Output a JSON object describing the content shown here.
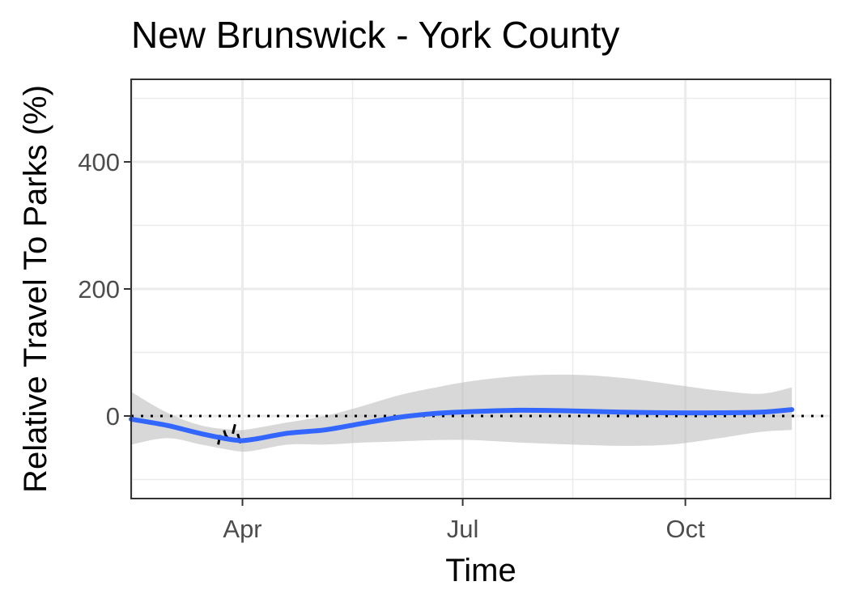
{
  "chart_data": {
    "type": "line",
    "title": "New Brunswick - York County",
    "xlabel": "Time",
    "ylabel": "Relative Travel To Parks (%)",
    "x_ticks": [
      {
        "label": "Apr",
        "date": "2020-04-01"
      },
      {
        "label": "Jul",
        "date": "2020-07-01"
      },
      {
        "label": "Oct",
        "date": "2020-10-01"
      }
    ],
    "y_ticks": [
      0,
      200,
      400
    ],
    "xlim": [
      "2020-02-15",
      "2020-11-30"
    ],
    "ylim": [
      -130,
      530
    ],
    "grid": true,
    "reference_line": {
      "y": 0,
      "style": "dotted"
    },
    "series": [
      {
        "kind": "smooth",
        "color": "#3366ff",
        "points": [
          {
            "x": "2020-02-15",
            "y": -5,
            "lo": -45,
            "hi": 38
          },
          {
            "x": "2020-03-01",
            "y": -15,
            "lo": -35,
            "hi": 5
          },
          {
            "x": "2020-03-15",
            "y": -28,
            "lo": -45,
            "hi": -15
          },
          {
            "x": "2020-03-29",
            "y": -38,
            "lo": -55,
            "hi": -22
          },
          {
            "x": "2020-04-05",
            "y": -37,
            "lo": -55,
            "hi": -20
          },
          {
            "x": "2020-04-20",
            "y": -27,
            "lo": -45,
            "hi": -10
          },
          {
            "x": "2020-05-05",
            "y": -22,
            "lo": -45,
            "hi": 0
          },
          {
            "x": "2020-05-20",
            "y": -12,
            "lo": -42,
            "hi": 15
          },
          {
            "x": "2020-06-05",
            "y": -2,
            "lo": -40,
            "hi": 33
          },
          {
            "x": "2020-06-20",
            "y": 4,
            "lo": -38,
            "hi": 45
          },
          {
            "x": "2020-07-05",
            "y": 7,
            "lo": -38,
            "hi": 55
          },
          {
            "x": "2020-07-25",
            "y": 9,
            "lo": -42,
            "hi": 63
          },
          {
            "x": "2020-08-15",
            "y": 8,
            "lo": -45,
            "hi": 65
          },
          {
            "x": "2020-09-05",
            "y": 6,
            "lo": -47,
            "hi": 60
          },
          {
            "x": "2020-09-25",
            "y": 5,
            "lo": -45,
            "hi": 50
          },
          {
            "x": "2020-10-15",
            "y": 5,
            "lo": -35,
            "hi": 40
          },
          {
            "x": "2020-11-01",
            "y": 6,
            "lo": -25,
            "hi": 35
          },
          {
            "x": "2020-11-14",
            "y": 10,
            "lo": -22,
            "hi": 45
          }
        ]
      },
      {
        "kind": "raw",
        "color": "#000000",
        "points": [
          {
            "x": "2020-03-22",
            "y": -45
          },
          {
            "x": "2020-03-23",
            "y": -25
          },
          {
            "x": "2020-03-24",
            "y": -18
          },
          {
            "x": "2020-03-25",
            "y": -30
          },
          {
            "x": "2020-03-27",
            "y": -40
          },
          {
            "x": "2020-03-28",
            "y": -28
          },
          {
            "x": "2020-03-29",
            "y": -12
          },
          {
            "x": "2020-03-30",
            "y": -28
          },
          {
            "x": "2020-03-31",
            "y": -40
          },
          {
            "x": "2020-04-01",
            "y": -50
          }
        ]
      }
    ]
  }
}
